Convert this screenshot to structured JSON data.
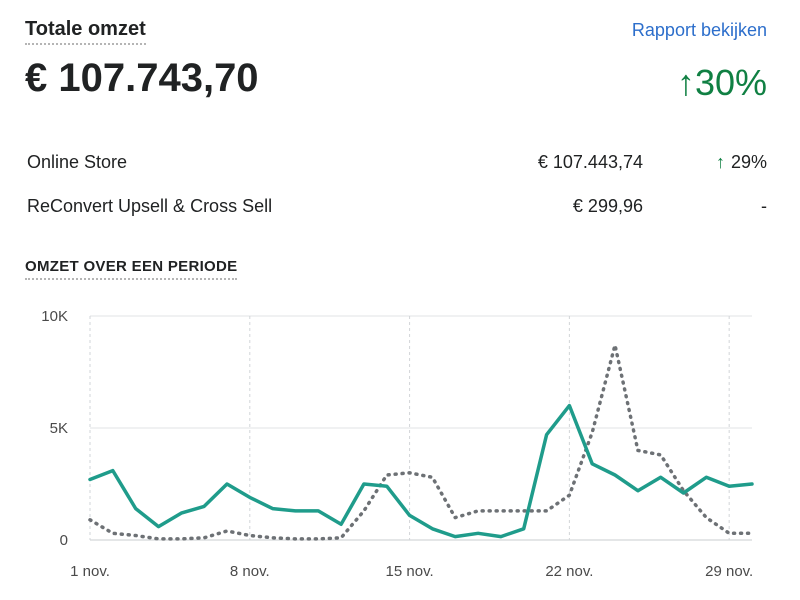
{
  "header": {
    "title": "Totale omzet",
    "report_link": "Rapport bekijken",
    "total": "€ 107.743,70",
    "change_arrow": "↑",
    "change": "30%"
  },
  "breakdown": [
    {
      "label": "Online Store",
      "value": "€ 107.443,74",
      "arrow": "↑",
      "change": "29%"
    },
    {
      "label": "ReConvert Upsell & Cross Sell",
      "value": "€ 299,96",
      "arrow": "",
      "change": "-"
    }
  ],
  "section_title": "OMZET OVER EEN PERIODE",
  "colors": {
    "current": "#1f9c8b",
    "previous": "#6d7175",
    "accent_up": "#108043",
    "link": "#2c6ecb"
  },
  "chart_data": {
    "type": "line",
    "ylim": [
      0,
      10000
    ],
    "yticks": [
      0,
      5000,
      10000
    ],
    "ytick_labels": [
      "0",
      "5K",
      "10K"
    ],
    "x": [
      1,
      2,
      3,
      4,
      5,
      6,
      7,
      8,
      9,
      10,
      11,
      12,
      13,
      14,
      15,
      16,
      17,
      18,
      19,
      20,
      21,
      22,
      23,
      24,
      25,
      26,
      27,
      28,
      29,
      30
    ],
    "xticks": [
      1,
      8,
      15,
      22,
      29
    ],
    "xtick_labels": [
      "1 nov.",
      "8 nov.",
      "15 nov.",
      "22 nov.",
      "29 nov."
    ],
    "series": [
      {
        "style": "solid",
        "values": [
          2700,
          3100,
          1400,
          600,
          1200,
          1500,
          2500,
          1900,
          1400,
          1300,
          1300,
          700,
          2500,
          2400,
          1100,
          500,
          150,
          300,
          150,
          500,
          4700,
          6000,
          3400,
          2900,
          2200,
          2800,
          2100,
          2800,
          2400,
          2500
        ]
      },
      {
        "style": "dotted",
        "values": [
          900,
          300,
          200,
          50,
          50,
          100,
          400,
          200,
          100,
          50,
          50,
          100,
          1300,
          2900,
          3000,
          2800,
          1000,
          1300,
          1300,
          1300,
          1300,
          2000,
          4800,
          8700,
          4000,
          3800,
          2200,
          1000,
          300,
          300
        ]
      }
    ]
  }
}
